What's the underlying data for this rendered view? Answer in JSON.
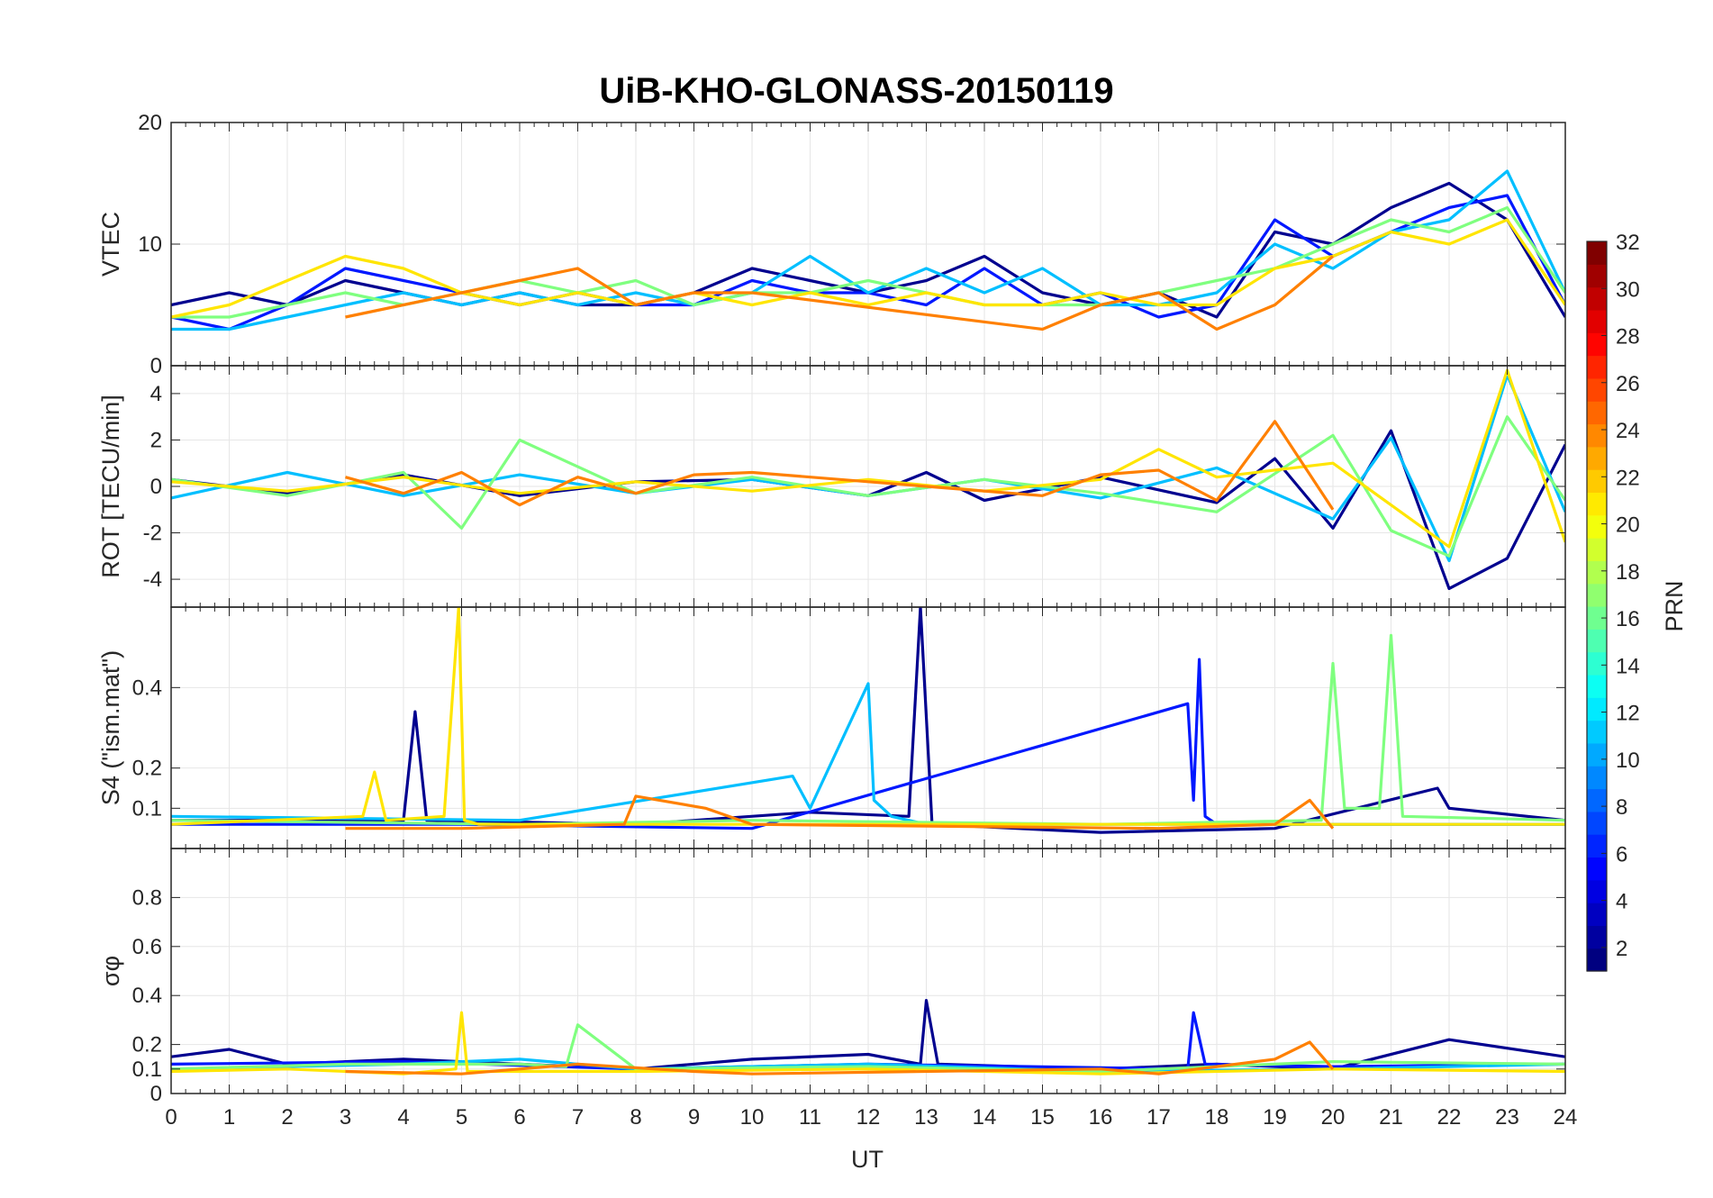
{
  "chart_data": {
    "type": "line",
    "title": "UiB-KHO-GLONASS-20150119",
    "xlabel": "UT",
    "xlim": [
      0,
      24
    ],
    "x_ticks": [
      0,
      1,
      2,
      3,
      4,
      5,
      6,
      7,
      8,
      9,
      10,
      11,
      12,
      13,
      14,
      15,
      16,
      17,
      18,
      19,
      20,
      21,
      22,
      23,
      24
    ],
    "colorbar": {
      "label": "PRN",
      "colormap": "jet",
      "range": [
        1,
        32
      ],
      "ticks": [
        2,
        4,
        6,
        8,
        10,
        12,
        14,
        16,
        18,
        20,
        22,
        24,
        26,
        28,
        30,
        32
      ]
    },
    "panels": [
      {
        "ylabel": "VTEC",
        "ylim": [
          0,
          20
        ],
        "yticks": [
          0,
          10,
          20
        ],
        "series": [
          {
            "color": "#00008f",
            "x": [
              0,
              1,
              2,
              3,
              4,
              5,
              6,
              7,
              8,
              9,
              10,
              11,
              12,
              13,
              14,
              15,
              16,
              17,
              18,
              19,
              20,
              21,
              22,
              23,
              24
            ],
            "y": [
              5,
              6,
              5,
              7,
              6,
              5,
              6,
              5,
              5,
              6,
              8,
              7,
              6,
              7,
              9,
              6,
              5,
              6,
              4,
              11,
              10,
              13,
              15,
              12,
              4
            ]
          },
          {
            "color": "#0018ff",
            "x": [
              0,
              1,
              2,
              3,
              4,
              5,
              6,
              7,
              8,
              9,
              10,
              11,
              12,
              13,
              14,
              15,
              16,
              17,
              18,
              19,
              20,
              21,
              22,
              23,
              24
            ],
            "y": [
              4,
              3,
              5,
              8,
              7,
              6,
              5,
              6,
              5,
              5,
              7,
              6,
              6,
              5,
              8,
              5,
              6,
              4,
              5,
              12,
              9,
              11,
              13,
              14,
              5
            ]
          },
          {
            "color": "#00bfff",
            "x": [
              0,
              1,
              2,
              3,
              4,
              5,
              6,
              7,
              8,
              9,
              10,
              11,
              12,
              13,
              14,
              15,
              16,
              17,
              18,
              19,
              20,
              21,
              22,
              23,
              24
            ],
            "y": [
              3,
              3,
              4,
              5,
              6,
              5,
              6,
              5,
              6,
              5,
              6,
              9,
              6,
              8,
              6,
              8,
              5,
              5,
              6,
              10,
              8,
              11,
              12,
              16,
              6
            ]
          },
          {
            "color": "#7fff7f",
            "x": [
              0,
              1,
              2,
              3,
              4,
              5,
              6,
              7,
              8,
              9,
              10,
              11,
              12,
              13,
              14,
              15,
              16,
              17,
              18,
              19,
              20,
              21,
              22,
              23,
              24
            ],
            "y": [
              4,
              4,
              5,
              6,
              5,
              6,
              7,
              6,
              7,
              5,
              6,
              6,
              7,
              6,
              5,
              5,
              5,
              6,
              7,
              8,
              10,
              12,
              11,
              13,
              6
            ]
          },
          {
            "color": "#ffe500",
            "x": [
              0,
              1,
              2,
              3,
              4,
              5,
              6,
              7,
              8,
              9,
              10,
              11,
              12,
              13,
              14,
              15,
              16,
              17,
              18,
              19,
              20,
              21,
              22,
              23,
              24
            ],
            "y": [
              4,
              5,
              7,
              9,
              8,
              6,
              5,
              6,
              5,
              6,
              5,
              6,
              5,
              6,
              5,
              5,
              6,
              5,
              5,
              8,
              9,
              11,
              10,
              12,
              5
            ]
          },
          {
            "color": "#ff8000",
            "x": [
              3,
              4,
              5,
              6,
              7,
              8,
              9,
              10,
              15,
              16,
              17,
              18,
              19,
              20
            ],
            "y": [
              4,
              5,
              6,
              7,
              8,
              5,
              6,
              6,
              3,
              5,
              6,
              3,
              5,
              9
            ]
          }
        ]
      },
      {
        "ylabel": "ROT [TECU/min]",
        "ylim": [
          -5.2,
          5.2
        ],
        "yticks": [
          -4,
          -2,
          0,
          2,
          4
        ],
        "series": [
          {
            "color": "#00008f",
            "x": [
              0,
              2,
              4,
              6,
              8,
              10,
              12,
              13,
              14,
              16,
              18,
              19,
              20,
              21,
              22,
              23,
              24
            ],
            "y": [
              0.3,
              -0.3,
              0.5,
              -0.4,
              0.2,
              0.3,
              -0.4,
              0.6,
              -0.6,
              0.4,
              -0.7,
              1.2,
              -1.8,
              2.4,
              -4.4,
              -3.1,
              1.8
            ]
          },
          {
            "color": "#00bfff",
            "x": [
              0,
              2,
              4,
              6,
              8,
              10,
              12,
              14,
              16,
              18,
              20,
              21,
              22,
              23,
              24
            ],
            "y": [
              -0.5,
              0.6,
              -0.4,
              0.5,
              -0.3,
              0.3,
              -0.4,
              0.3,
              -0.5,
              0.8,
              -1.4,
              2.1,
              -3.2,
              4.8,
              -1.1
            ]
          },
          {
            "color": "#7fff7f",
            "x": [
              0,
              2,
              4,
              5,
              6,
              8,
              10,
              12,
              14,
              16,
              18,
              20,
              21,
              22,
              23,
              24
            ],
            "y": [
              0.3,
              -0.4,
              0.6,
              -1.8,
              2.0,
              -0.3,
              0.4,
              -0.4,
              0.3,
              -0.3,
              -1.1,
              2.2,
              -1.9,
              -3.0,
              3.0,
              -0.6
            ]
          },
          {
            "color": "#ffe500",
            "x": [
              0,
              2,
              4,
              6,
              8,
              10,
              12,
              14,
              16,
              17,
              18,
              20,
              22,
              23,
              24
            ],
            "y": [
              0.2,
              -0.2,
              0.4,
              -0.3,
              0.2,
              -0.2,
              0.3,
              -0.2,
              0.3,
              1.6,
              0.4,
              1.0,
              -2.6,
              5.0,
              -2.4
            ]
          },
          {
            "color": "#ff8000",
            "x": [
              3,
              4,
              5,
              6,
              7,
              8,
              9,
              10,
              15,
              16,
              17,
              18,
              19,
              20
            ],
            "y": [
              0.4,
              -0.3,
              0.6,
              -0.8,
              0.4,
              -0.3,
              0.5,
              0.6,
              -0.4,
              0.5,
              0.7,
              -0.6,
              2.8,
              -1.0
            ]
          }
        ]
      },
      {
        "ylabel": "S4 (\"ism.mat\")",
        "ylim": [
          0,
          0.6
        ],
        "yticks": [
          0.1,
          0.2,
          0.4
        ],
        "series": [
          {
            "color": "#00008f",
            "x": [
              0,
              4,
              4.2,
              4.4,
              8,
              11,
              12.7,
              12.9,
              13.1,
              16,
              19,
              21.8,
              22,
              24
            ],
            "y": [
              0.07,
              0.07,
              0.34,
              0.07,
              0.06,
              0.09,
              0.08,
              0.6,
              0.06,
              0.04,
              0.05,
              0.15,
              0.1,
              0.07
            ]
          },
          {
            "color": "#0018ff",
            "x": [
              0,
              5,
              10,
              17.5,
              17.6,
              17.7,
              17.8,
              18,
              24
            ],
            "y": [
              0.06,
              0.06,
              0.05,
              0.36,
              0.12,
              0.47,
              0.08,
              0.06,
              0.06
            ]
          },
          {
            "color": "#00bfff",
            "x": [
              0,
              6,
              10.7,
              11,
              12,
              12.1,
              12.4,
              13,
              18,
              24
            ],
            "y": [
              0.08,
              0.07,
              0.18,
              0.1,
              0.41,
              0.12,
              0.08,
              0.06,
              0.06,
              0.06
            ]
          },
          {
            "color": "#7fff7f",
            "x": [
              0,
              6,
              10,
              16,
              19.8,
              20,
              20.2,
              20.8,
              21,
              21.2,
              24
            ],
            "y": [
              0.07,
              0.06,
              0.07,
              0.06,
              0.07,
              0.46,
              0.1,
              0.1,
              0.53,
              0.08,
              0.07
            ]
          },
          {
            "color": "#ffe500",
            "x": [
              0,
              3.3,
              3.5,
              3.7,
              4.7,
              4.95,
              5.05,
              5.3,
              10,
              24
            ],
            "y": [
              0.06,
              0.08,
              0.19,
              0.07,
              0.08,
              0.6,
              0.07,
              0.06,
              0.06,
              0.06
            ]
          },
          {
            "color": "#ff8000",
            "x": [
              3,
              5,
              7.8,
              8,
              9.2,
              10,
              17,
              19,
              19.6,
              20
            ],
            "y": [
              0.05,
              0.05,
              0.06,
              0.13,
              0.1,
              0.06,
              0.05,
              0.06,
              0.12,
              0.05
            ]
          }
        ]
      },
      {
        "ylabel": "σφ",
        "ylim": [
          0,
          1
        ],
        "yticks": [
          0,
          0.1,
          0.2,
          0.4,
          0.6,
          0.8
        ],
        "series": [
          {
            "color": "#00008f",
            "x": [
              0,
              1,
              2,
              4,
              6,
              8,
              10,
              12,
              12.9,
              13,
              13.2,
              16,
              18,
              20,
              22,
              24
            ],
            "y": [
              0.15,
              0.18,
              0.12,
              0.14,
              0.12,
              0.1,
              0.14,
              0.16,
              0.12,
              0.38,
              0.12,
              0.1,
              0.12,
              0.1,
              0.22,
              0.15
            ]
          },
          {
            "color": "#0018ff",
            "x": [
              0,
              4,
              8,
              12,
              17.5,
              17.6,
              17.8,
              20,
              24
            ],
            "y": [
              0.12,
              0.13,
              0.1,
              0.12,
              0.1,
              0.33,
              0.12,
              0.11,
              0.12
            ]
          },
          {
            "color": "#00bfff",
            "x": [
              0,
              4,
              6,
              8,
              12,
              16,
              20,
              24
            ],
            "y": [
              0.1,
              0.12,
              0.14,
              0.1,
              0.12,
              0.09,
              0.1,
              0.12
            ]
          },
          {
            "color": "#7fff7f",
            "x": [
              0,
              3,
              6,
              6.8,
              7,
              8,
              12,
              16,
              20,
              24
            ],
            "y": [
              0.1,
              0.12,
              0.12,
              0.11,
              0.28,
              0.1,
              0.11,
              0.09,
              0.13,
              0.12
            ]
          },
          {
            "color": "#ffe500",
            "x": [
              0,
              2,
              4,
              4.9,
              5,
              5.1,
              8,
              12,
              16,
              20,
              24
            ],
            "y": [
              0.09,
              0.1,
              0.08,
              0.1,
              0.33,
              0.09,
              0.09,
              0.1,
              0.08,
              0.1,
              0.09
            ]
          },
          {
            "color": "#ff8000",
            "x": [
              3,
              5,
              7,
              9,
              10,
              16,
              17,
              18,
              19,
              19.6,
              20
            ],
            "y": [
              0.09,
              0.08,
              0.12,
              0.09,
              0.08,
              0.1,
              0.08,
              0.11,
              0.14,
              0.21,
              0.1
            ]
          }
        ]
      }
    ]
  }
}
